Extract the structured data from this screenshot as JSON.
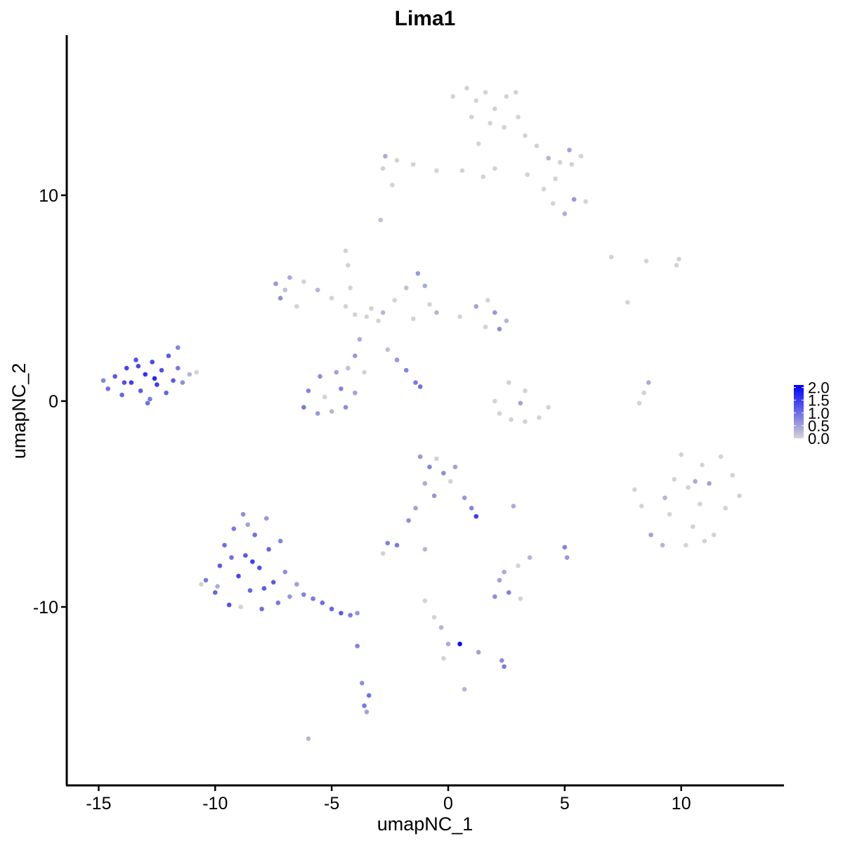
{
  "chart_data": {
    "type": "scatter",
    "title": "Lima1",
    "x_label": "umapNC_1",
    "y_label": "umapNC_2",
    "xlim": [
      -16.37,
      14.38
    ],
    "ylim": [
      -18.67,
      17.78
    ],
    "xticks": [
      -15,
      -10,
      -5,
      0,
      5,
      10
    ],
    "yticks": [
      -10,
      0,
      10
    ],
    "color_low": "#d3d3d3",
    "color_high": "#0000ff",
    "color_lim": [
      0,
      2.1
    ],
    "color_ticks": [
      {
        "value": 0,
        "label": "0.0"
      },
      {
        "value": 0.5,
        "label": "0.5"
      },
      {
        "value": 1,
        "label": "1.0"
      },
      {
        "value": 1.5,
        "label": "1.5"
      },
      {
        "value": 2,
        "label": "2.0"
      }
    ],
    "legend_position": "right",
    "points": [
      [
        -14.6,
        0.6,
        1.0
      ],
      [
        -14.3,
        1.2,
        1.2
      ],
      [
        -14.0,
        0.3,
        1.1
      ],
      [
        -13.8,
        1.6,
        1.4
      ],
      [
        -13.6,
        0.9,
        1.5
      ],
      [
        -13.4,
        2.0,
        1.3
      ],
      [
        -13.2,
        0.5,
        1.2
      ],
      [
        -13.0,
        1.3,
        1.6
      ],
      [
        -12.8,
        0.1,
        0.9
      ],
      [
        -12.7,
        1.9,
        1.4
      ],
      [
        -12.5,
        0.8,
        1.5
      ],
      [
        -12.3,
        1.5,
        1.3
      ],
      [
        -12.1,
        0.4,
        1.1
      ],
      [
        -12.0,
        2.2,
        1.2
      ],
      [
        -11.8,
        1.0,
        1.2
      ],
      [
        -11.6,
        1.6,
        0.9
      ],
      [
        -11.4,
        0.9,
        0.7
      ],
      [
        -11.6,
        2.6,
        0.8
      ],
      [
        -11.1,
        1.3,
        0.3
      ],
      [
        -10.8,
        1.4,
        0
      ],
      [
        -13.9,
        0.9,
        1.3
      ],
      [
        -12.6,
        1.1,
        1.7
      ],
      [
        -13.3,
        1.7,
        1.4
      ],
      [
        -12.9,
        -0.1,
        1.0
      ],
      [
        -14.8,
        1.0,
        0.8
      ],
      [
        -10.4,
        -8.7,
        0.9
      ],
      [
        -10.0,
        -9.3,
        1.1
      ],
      [
        -9.8,
        -8.0,
        1.2
      ],
      [
        -9.6,
        -7.0,
        1.0
      ],
      [
        -9.4,
        -9.9,
        1.3
      ],
      [
        -9.2,
        -6.2,
        0.9
      ],
      [
        -9.0,
        -8.5,
        1.4
      ],
      [
        -8.8,
        -5.5,
        0.7
      ],
      [
        -8.7,
        -7.5,
        1.2
      ],
      [
        -8.5,
        -9.2,
        1.1
      ],
      [
        -8.3,
        -6.5,
        1.0
      ],
      [
        -8.1,
        -8.1,
        1.3
      ],
      [
        -8.0,
        -10.1,
        1.0
      ],
      [
        -7.8,
        -5.7,
        0.6
      ],
      [
        -7.7,
        -7.2,
        1.1
      ],
      [
        -7.5,
        -8.8,
        1.2
      ],
      [
        -7.3,
        -9.8,
        0.9
      ],
      [
        -7.2,
        -6.8,
        0.8
      ],
      [
        -7.0,
        -8.3,
        0.7
      ],
      [
        -6.8,
        -9.5,
        0.6
      ],
      [
        -6.5,
        -8.9,
        0.5
      ],
      [
        -6.2,
        -9.4,
        0.8
      ],
      [
        -5.8,
        -9.6,
        0.9
      ],
      [
        -5.4,
        -9.8,
        1.0
      ],
      [
        -5.0,
        -10.1,
        1.1
      ],
      [
        -4.6,
        -10.3,
        1.2
      ],
      [
        -4.2,
        -10.4,
        0.9
      ],
      [
        -3.9,
        -10.3,
        0.6
      ],
      [
        -9.9,
        -9.0,
        0.4
      ],
      [
        -8.9,
        -10.0,
        0
      ],
      [
        -9.3,
        -7.6,
        1.0
      ],
      [
        -8.4,
        -7.8,
        1.5
      ],
      [
        -7.9,
        -9.1,
        1.2
      ],
      [
        -10.6,
        -8.9,
        0
      ],
      [
        -8.6,
        -6.0,
        0.5
      ],
      [
        -3.9,
        -11.9,
        0.8
      ],
      [
        -3.7,
        -13.7,
        0.7
      ],
      [
        -3.6,
        -14.8,
        0.9
      ],
      [
        -3.4,
        -14.3,
        1.0
      ],
      [
        -3.5,
        -15.1,
        0.5
      ],
      [
        -6.0,
        -16.4,
        0.3
      ],
      [
        0.8,
        15.2,
        0
      ],
      [
        1.2,
        14.6,
        0
      ],
      [
        1.6,
        15.0,
        0
      ],
      [
        2.0,
        14.2,
        0
      ],
      [
        2.5,
        14.8,
        0
      ],
      [
        2.9,
        15.0,
        0
      ],
      [
        1.0,
        13.8,
        0
      ],
      [
        1.8,
        13.5,
        0
      ],
      [
        2.4,
        13.3,
        0
      ],
      [
        3.0,
        13.8,
        0
      ],
      [
        3.3,
        12.9,
        0
      ],
      [
        3.8,
        12.4,
        0
      ],
      [
        4.3,
        11.8,
        0.3
      ],
      [
        4.8,
        11.6,
        0
      ],
      [
        5.3,
        11.5,
        0
      ],
      [
        5.7,
        11.9,
        0
      ],
      [
        5.2,
        12.2,
        0.5
      ],
      [
        4.6,
        10.8,
        0
      ],
      [
        4.1,
        10.3,
        0
      ],
      [
        4.5,
        9.6,
        0
      ],
      [
        5.0,
        9.1,
        0.4
      ],
      [
        5.4,
        9.8,
        0.6
      ],
      [
        5.9,
        9.7,
        0
      ],
      [
        2.0,
        11.3,
        0
      ],
      [
        1.5,
        10.9,
        0
      ],
      [
        0.6,
        11.2,
        0
      ],
      [
        -0.5,
        11.2,
        0
      ],
      [
        -1.5,
        11.5,
        0
      ],
      [
        -2.2,
        11.7,
        0
      ],
      [
        -2.7,
        11.9,
        0.4
      ],
      [
        -2.8,
        11.3,
        0
      ],
      [
        -2.4,
        10.5,
        0
      ],
      [
        -2.9,
        8.8,
        0.2
      ],
      [
        0.2,
        14.8,
        0
      ],
      [
        3.4,
        11.0,
        0
      ],
      [
        1.3,
        12.5,
        0
      ],
      [
        -3.5,
        4.1,
        0
      ],
      [
        -3.0,
        3.9,
        0
      ],
      [
        -4.0,
        4.2,
        0
      ],
      [
        -3.3,
        4.5,
        0
      ],
      [
        -2.8,
        4.3,
        0.3
      ],
      [
        -4.4,
        4.6,
        0
      ],
      [
        -5.0,
        5.0,
        0
      ],
      [
        -5.6,
        5.4,
        0.3
      ],
      [
        -6.2,
        5.8,
        0
      ],
      [
        -6.8,
        6.0,
        0.4
      ],
      [
        -7.4,
        5.7,
        0.6
      ],
      [
        -7.2,
        5.0,
        0.7
      ],
      [
        -6.5,
        4.6,
        0
      ],
      [
        -7.0,
        5.4,
        0.2
      ],
      [
        -4.4,
        7.3,
        0
      ],
      [
        -4.3,
        6.6,
        0
      ],
      [
        -4.2,
        5.5,
        0
      ],
      [
        -2.3,
        4.9,
        0
      ],
      [
        -1.8,
        5.5,
        0.2
      ],
      [
        -1.3,
        6.2,
        0.6
      ],
      [
        -1.0,
        5.6,
        0.4
      ],
      [
        -0.8,
        4.7,
        0
      ],
      [
        -1.5,
        4.0,
        0
      ],
      [
        -0.5,
        4.3,
        0.3
      ],
      [
        0.5,
        4.1,
        0
      ],
      [
        1.2,
        4.6,
        0.5
      ],
      [
        1.7,
        4.9,
        0
      ],
      [
        2.0,
        4.3,
        0.6
      ],
      [
        2.5,
        3.9,
        0.3
      ],
      [
        2.2,
        3.5,
        0.7
      ],
      [
        1.6,
        3.6,
        0
      ],
      [
        -2.6,
        2.5,
        0.2
      ],
      [
        -2.2,
        2.0,
        0.6
      ],
      [
        -1.8,
        1.5,
        0.8
      ],
      [
        -1.4,
        0.9,
        0.9
      ],
      [
        -1.2,
        0.7,
        1.0
      ],
      [
        -3.8,
        3.0,
        0.4
      ],
      [
        -4.0,
        2.2,
        0.6
      ],
      [
        -4.3,
        1.6,
        0.2
      ],
      [
        -4.8,
        1.4,
        0.5
      ],
      [
        -5.5,
        1.2,
        0.7
      ],
      [
        -6.0,
        0.5,
        0.8
      ],
      [
        -6.2,
        -0.3,
        0.9
      ],
      [
        -5.6,
        -0.6,
        0.6
      ],
      [
        -5.0,
        -0.5,
        0.3
      ],
      [
        -4.4,
        -0.3,
        0.7
      ],
      [
        -4.0,
        0.4,
        0.5
      ],
      [
        -4.6,
        0.6,
        0.8
      ],
      [
        -5.3,
        0.2,
        0
      ],
      [
        -3.6,
        1.4,
        0
      ],
      [
        2.0,
        0.0,
        0
      ],
      [
        2.2,
        -0.6,
        0
      ],
      [
        2.7,
        -0.9,
        0
      ],
      [
        3.3,
        -1.0,
        0
      ],
      [
        3.9,
        -0.8,
        0
      ],
      [
        4.3,
        -0.3,
        0
      ],
      [
        3.1,
        -0.1,
        0.5
      ],
      [
        2.6,
        0.9,
        0
      ],
      [
        3.3,
        0.5,
        0
      ],
      [
        8.2,
        -0.1,
        0
      ],
      [
        8.4,
        0.4,
        0
      ],
      [
        8.6,
        0.9,
        0.4
      ],
      [
        7.0,
        7.0,
        0
      ],
      [
        8.5,
        6.8,
        0
      ],
      [
        9.8,
        6.6,
        0
      ],
      [
        9.9,
        6.9,
        0
      ],
      [
        7.7,
        4.8,
        0
      ],
      [
        8.0,
        -4.3,
        0
      ],
      [
        8.3,
        -5.1,
        0
      ],
      [
        8.7,
        -6.5,
        0.5
      ],
      [
        9.2,
        -7.0,
        0.3
      ],
      [
        9.5,
        -5.5,
        0
      ],
      [
        9.7,
        -3.8,
        0
      ],
      [
        10.0,
        -2.6,
        0
      ],
      [
        10.3,
        -4.2,
        0
      ],
      [
        10.5,
        -6.1,
        0
      ],
      [
        10.8,
        -5.0,
        0
      ],
      [
        10.9,
        -3.1,
        0
      ],
      [
        11.2,
        -4.0,
        0.5
      ],
      [
        11.4,
        -6.5,
        0
      ],
      [
        11.7,
        -2.7,
        0
      ],
      [
        11.9,
        -5.2,
        0
      ],
      [
        12.2,
        -3.6,
        0
      ],
      [
        12.5,
        -4.6,
        0
      ],
      [
        10.2,
        -7.0,
        0
      ],
      [
        11.0,
        -6.8,
        0
      ],
      [
        9.3,
        -4.7,
        0.3
      ],
      [
        10.6,
        -3.9,
        0.4
      ],
      [
        -1.2,
        -2.7,
        0.6
      ],
      [
        -0.8,
        -3.2,
        0.8
      ],
      [
        -0.5,
        -2.8,
        0
      ],
      [
        -0.2,
        -3.5,
        0.7
      ],
      [
        0.1,
        -3.9,
        0
      ],
      [
        0.3,
        -3.2,
        0.5
      ],
      [
        -1.0,
        -4.0,
        0.4
      ],
      [
        -0.6,
        -4.6,
        0.6
      ],
      [
        -1.4,
        -5.2,
        0.5
      ],
      [
        -1.7,
        -5.8,
        0.7
      ],
      [
        0.7,
        -4.7,
        0.6
      ],
      [
        1.0,
        -5.2,
        0.8
      ],
      [
        1.2,
        -5.6,
        1.5
      ],
      [
        -2.6,
        -6.9,
        0.8
      ],
      [
        -2.2,
        -7.0,
        0.9
      ],
      [
        -2.8,
        -7.4,
        0
      ],
      [
        -1.0,
        -7.2,
        0.3
      ],
      [
        2.8,
        -5.1,
        0.4
      ],
      [
        5.0,
        -7.1,
        0.8
      ],
      [
        5.1,
        -7.6,
        0.6
      ],
      [
        3.5,
        -7.6,
        0.3
      ],
      [
        2.2,
        -8.7,
        0.5
      ],
      [
        2.0,
        -9.5,
        0.7
      ],
      [
        2.6,
        -9.3,
        0.8
      ],
      [
        3.1,
        -9.6,
        0
      ],
      [
        2.4,
        -8.3,
        0.4
      ],
      [
        3.0,
        -8.0,
        0
      ],
      [
        -0.6,
        -10.5,
        0
      ],
      [
        -0.3,
        -11.0,
        0.3
      ],
      [
        0.0,
        -11.8,
        0.4
      ],
      [
        0.5,
        -11.8,
        2.0
      ],
      [
        1.3,
        -12.2,
        0.5
      ],
      [
        2.3,
        -12.6,
        0.7
      ],
      [
        2.4,
        -12.9,
        0.9
      ],
      [
        0.7,
        -14.0,
        0.3
      ],
      [
        -1.0,
        -9.7,
        0
      ],
      [
        -0.2,
        -12.5,
        0
      ]
    ]
  }
}
